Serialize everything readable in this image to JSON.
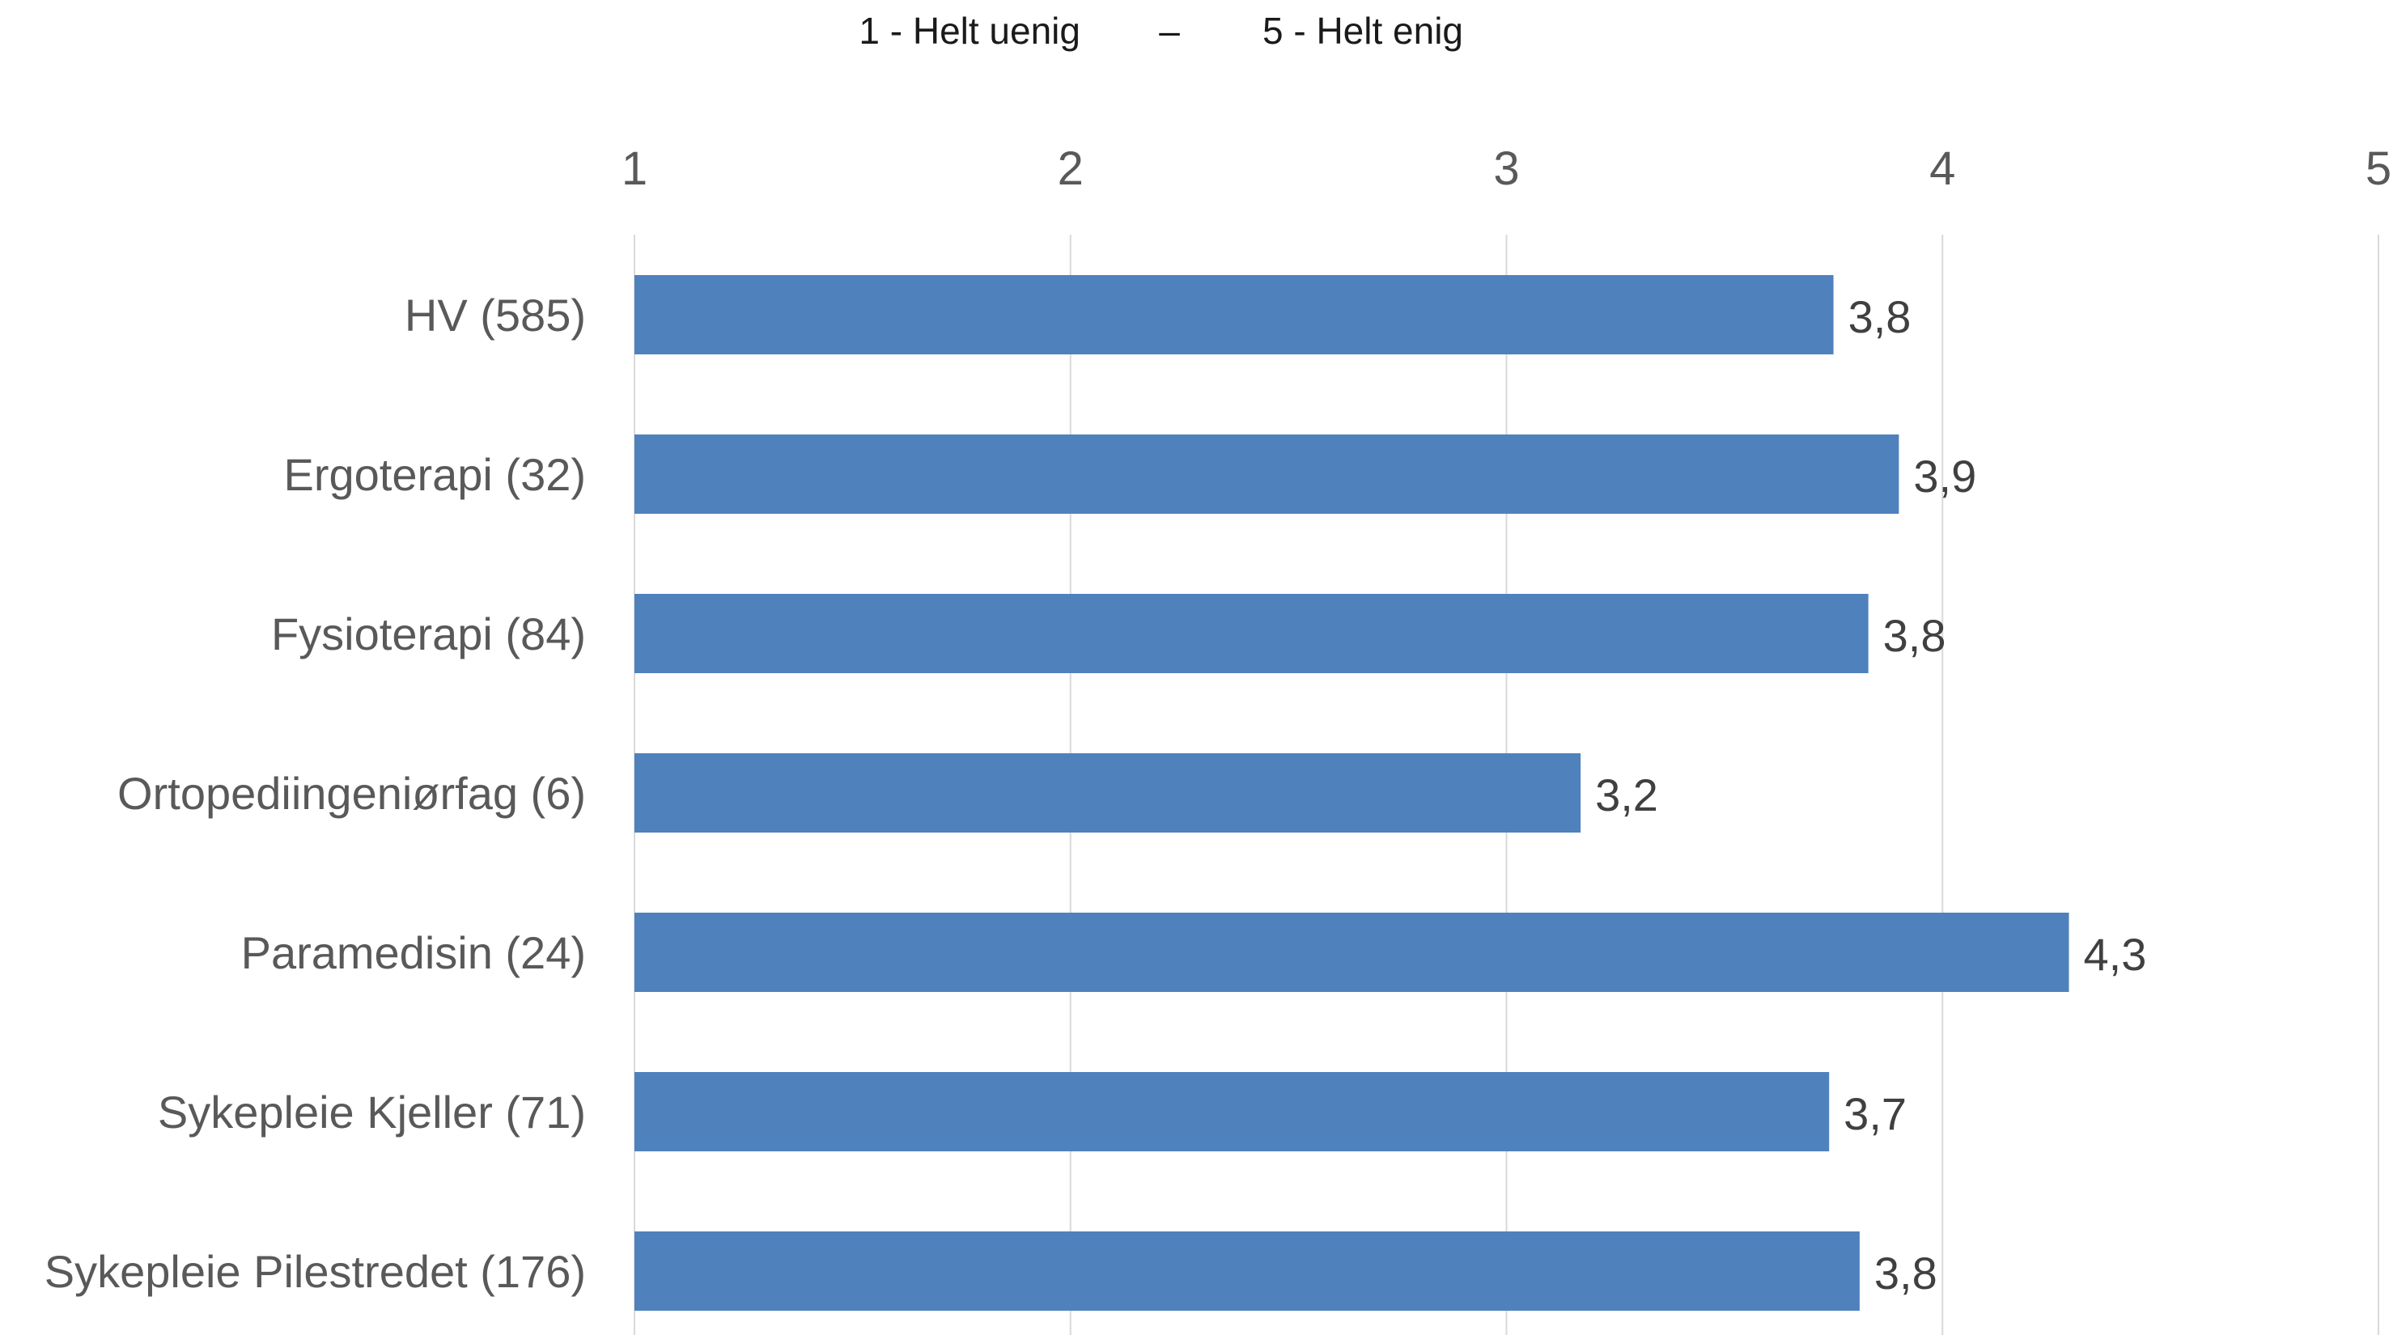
{
  "chart_data": {
    "type": "bar",
    "orientation": "horizontal",
    "scale_labels": {
      "low": "1 - Helt uenig",
      "separator": "–",
      "high": "5 - Helt enig"
    },
    "categories": [
      "HV (585)",
      "Ergoterapi (32)",
      "Fysioterapi (84)",
      "Ortopediingeniørfag (6)",
      "Paramedisin (24)",
      "Sykepleie Kjeller (71)",
      "Sykepleie Pilestredet (176)"
    ],
    "values": [
      3.75,
      3.9,
      3.83,
      3.17,
      4.29,
      3.74,
      3.81
    ],
    "value_labels": [
      "3,8",
      "3,9",
      "3,8",
      "3,2",
      "4,3",
      "3,7",
      "3,8"
    ],
    "xlim": [
      1,
      5
    ],
    "xticks": [
      "1",
      "2",
      "3",
      "4",
      "5"
    ],
    "x_axis_position": "top",
    "grid": true,
    "bar_color": "#4F81BD",
    "title": "",
    "xlabel": "",
    "ylabel": ""
  }
}
